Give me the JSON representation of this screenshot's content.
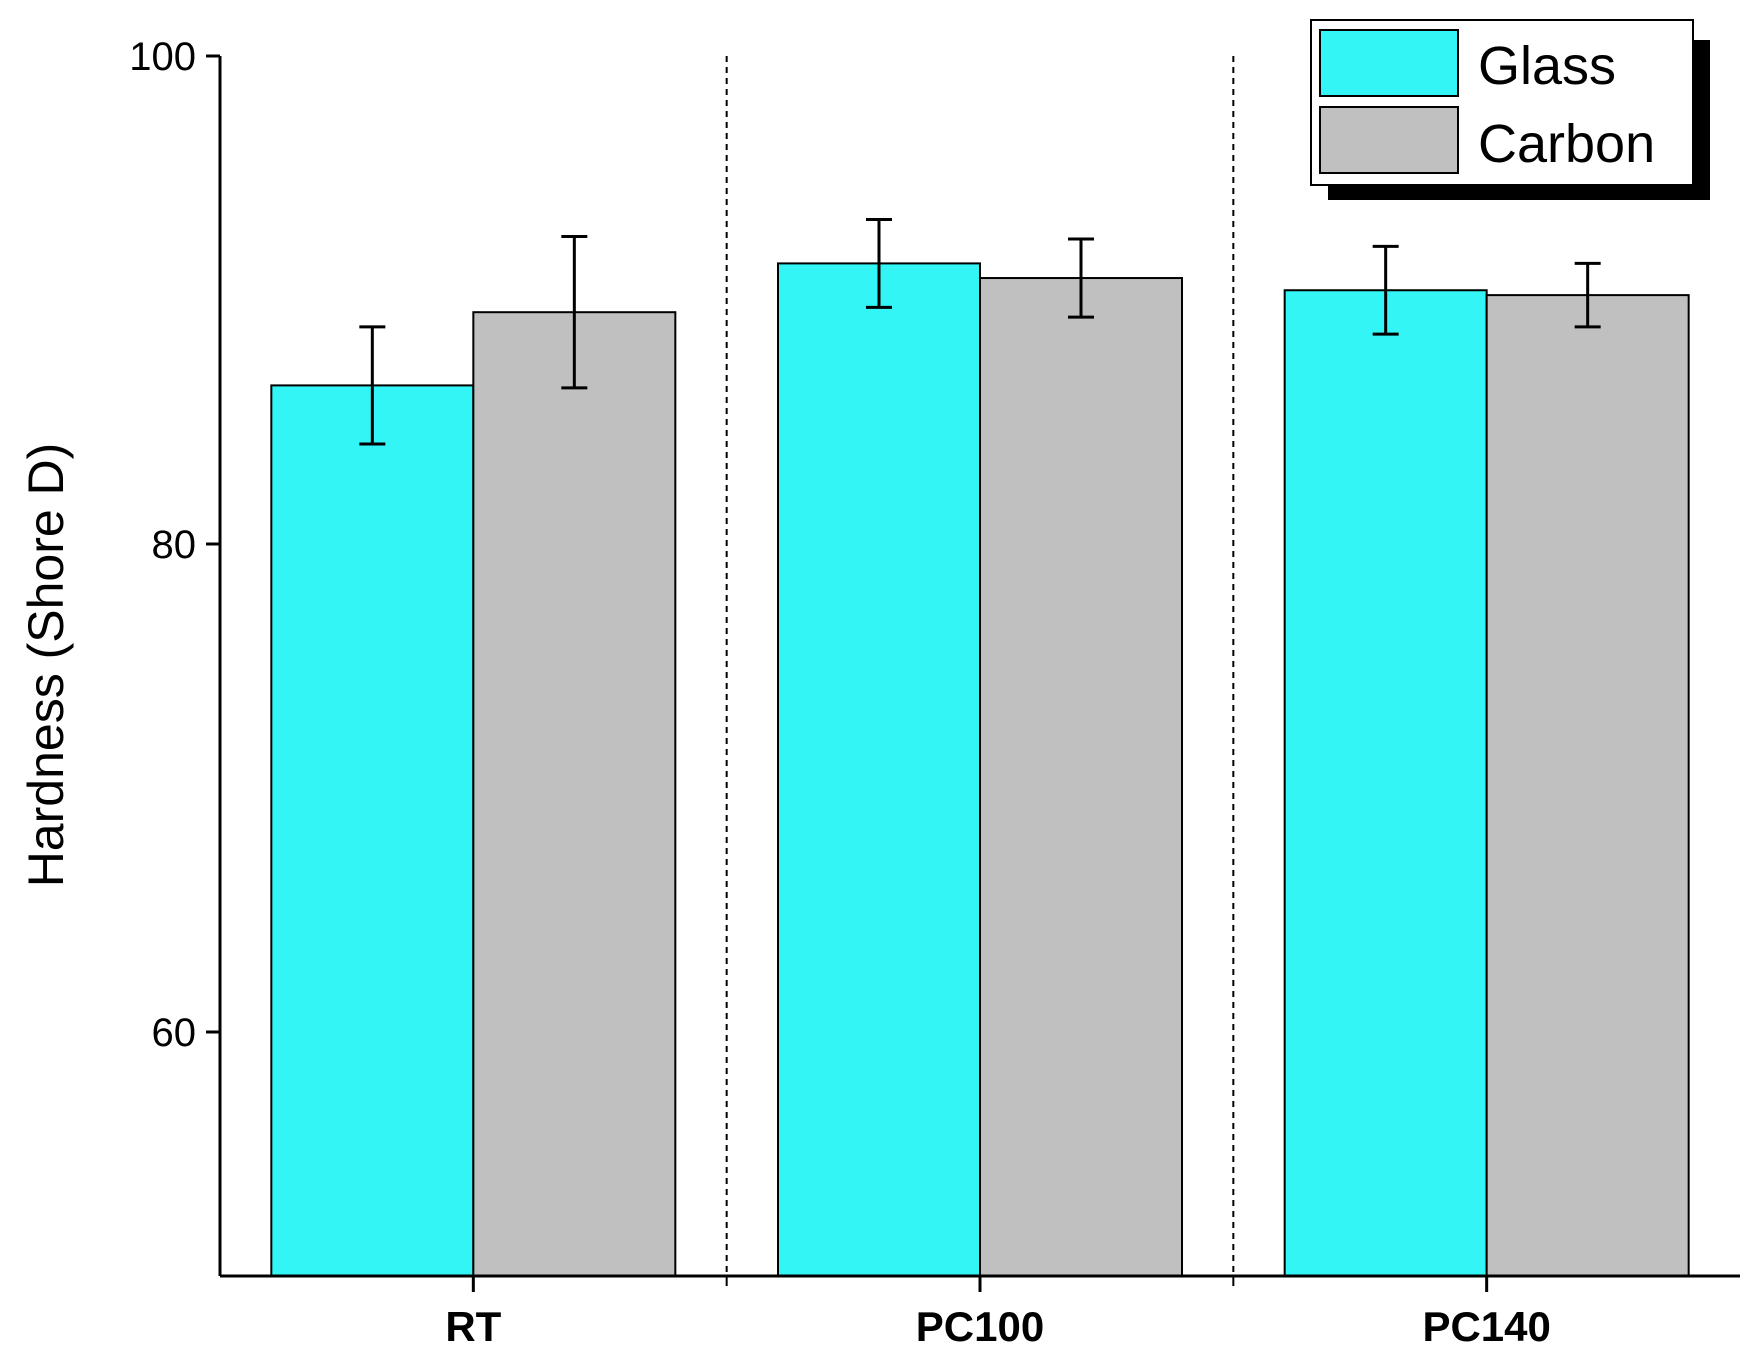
{
  "chart_data": {
    "type": "bar",
    "title": "",
    "xlabel": "",
    "ylabel": "Hardness (Shore D)",
    "ylim": [
      50,
      100
    ],
    "yticks": [
      60,
      80,
      100
    ],
    "categories": [
      "RT",
      "PC100",
      "PC140"
    ],
    "series": [
      {
        "name": "Glass",
        "color": "#33f5f5",
        "values": [
          86.5,
          91.5,
          90.4
        ],
        "errors": [
          2.4,
          1.8,
          1.8
        ]
      },
      {
        "name": "Carbon",
        "color": "#c0c0c0",
        "values": [
          89.5,
          90.9,
          90.2
        ],
        "errors": [
          3.1,
          1.6,
          1.3
        ]
      }
    ],
    "legend": {
      "position": "top-right",
      "entries": [
        "Glass",
        "Carbon"
      ]
    },
    "group_separators": "dashed",
    "grid": false
  }
}
